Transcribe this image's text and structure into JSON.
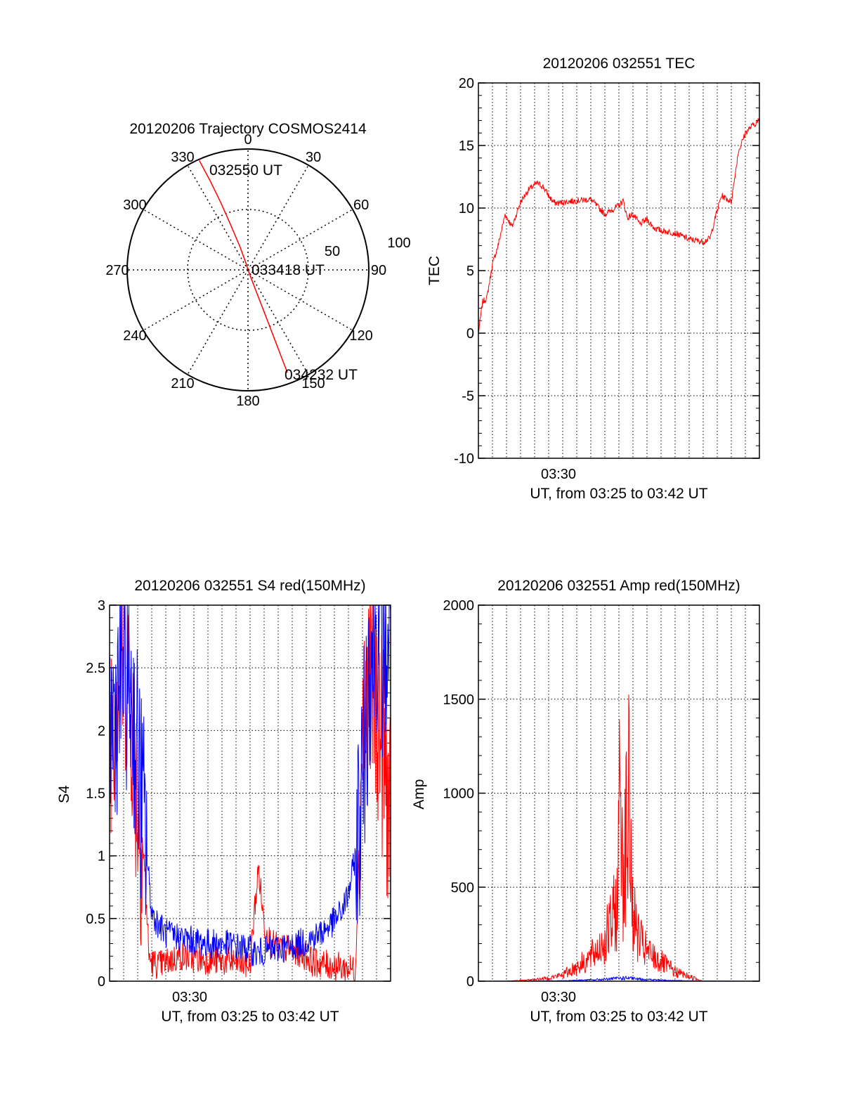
{
  "colors": {
    "red": "#ff0000",
    "blue": "#0000ff",
    "axis": "#000000",
    "grid": "#000000"
  },
  "chart_data": [
    {
      "type": "scatter",
      "kind": "polar-trajectory",
      "title": "20120206 Trajectory COSMOS2414",
      "azimuth_labels": [
        "0",
        "30",
        "60",
        "90",
        "120",
        "150",
        "180",
        "210",
        "240",
        "270",
        "300",
        "330"
      ],
      "radial_labels": [
        "50",
        "100"
      ],
      "series": [
        {
          "color": "#ff0000",
          "points": [
            {
              "az": 336,
              "elev": 99
            },
            {
              "az": 337,
              "elev": 80
            },
            {
              "az": 338,
              "elev": 60
            },
            {
              "az": 339,
              "elev": 40
            },
            {
              "az": 341,
              "elev": 20
            },
            {
              "az": 343,
              "elev": 6
            },
            {
              "az": 159,
              "elev": 2
            },
            {
              "az": 159,
              "elev": 20
            },
            {
              "az": 159,
              "elev": 40
            },
            {
              "az": 159,
              "elev": 60
            },
            {
              "az": 159,
              "elev": 80
            },
            {
              "az": 159,
              "elev": 91
            }
          ]
        }
      ],
      "annotations": [
        "032550 UT",
        "033418 UT",
        "034232 UT"
      ]
    },
    {
      "type": "line",
      "title": "20120206 032551 TEC",
      "xlabel": "UT, from 03:25 to 03:42 UT",
      "ylabel": "TEC",
      "xtick_labels": [
        "03:30"
      ],
      "ylim": [
        -10,
        20
      ],
      "yticks": [
        "-10",
        "-5",
        "0",
        "5",
        "10",
        "15",
        "20"
      ],
      "series": [
        {
          "color": "#ff0000",
          "x": [
            0,
            0.3,
            0.6,
            1.0,
            1.4,
            1.9,
            2.4,
            3.0,
            3.6,
            4.2,
            4.6,
            5.0,
            5.3,
            5.5,
            5.7,
            6.2,
            7.0,
            8.0,
            9.0,
            10.0,
            10.3,
            10.6,
            11.0,
            11.5,
            12.0,
            12.5,
            13.0,
            14.0,
            15.0,
            16.0,
            16.5,
            16.8,
            17.3,
            18.0,
            18.5,
            19.0,
            19.5,
            20.0
          ],
          "y": [
            0,
            2.5,
            2.8,
            5.5,
            7.0,
            9.5,
            8.5,
            10.5,
            11.5,
            12.0,
            11.7,
            11.0,
            10.5,
            10.4,
            10.4,
            10.5,
            10.6,
            10.7,
            9.5,
            10.2,
            10.6,
            9.2,
            9.5,
            8.7,
            9.1,
            8.4,
            8.2,
            8.0,
            7.5,
            7.3,
            7.6,
            9.0,
            11.0,
            10.5,
            14.5,
            16.0,
            16.6,
            17.0
          ]
        }
      ]
    },
    {
      "type": "line",
      "title": "20120206 032551 S4 red(150MHz)",
      "xlabel": "UT, from 03:25 to 03:42 UT",
      "ylabel": "S4",
      "xtick_labels": [
        "03:30"
      ],
      "ylim": [
        0,
        3
      ],
      "yticks": [
        "0",
        "0.5",
        "1",
        "1.5",
        "2",
        "2.5",
        "3"
      ],
      "series": [
        {
          "color": "#ff0000",
          "x": [
            0,
            0.5,
            1.0,
            1.5,
            2.0,
            2.5,
            2.8,
            3.0,
            3.5,
            4.0,
            5.0,
            6.0,
            7.0,
            8.0,
            9.0,
            10.0,
            10.3,
            10.6,
            11.0,
            11.5,
            12.0,
            13.0,
            14.0,
            14.5,
            15.0,
            16.0,
            17.0,
            17.5,
            18.0,
            18.5,
            19.0,
            19.5,
            20.0
          ],
          "y": [
            2.0,
            2.4,
            2.6,
            2.3,
            1.4,
            0.9,
            0.2,
            0.15,
            0.13,
            0.15,
            0.2,
            0.18,
            0.17,
            0.16,
            0.15,
            0.13,
            0.55,
            0.9,
            0.45,
            0.3,
            0.27,
            0.25,
            0.2,
            0.15,
            0.14,
            0.12,
            0.1,
            0.1,
            2.0,
            2.4,
            2.2,
            1.8,
            1.2
          ]
        },
        {
          "color": "#0000ff",
          "x": [
            0,
            0.5,
            1.0,
            1.5,
            2.0,
            2.5,
            3.0,
            3.5,
            4.0,
            5.0,
            6.0,
            7.0,
            8.0,
            9.0,
            10.0,
            10.5,
            11.0,
            12.0,
            13.0,
            14.0,
            15.0,
            16.0,
            16.5,
            17.0,
            17.5,
            18.0,
            18.5,
            19.0,
            19.5,
            20.0
          ],
          "y": [
            2.0,
            2.2,
            2.5,
            2.3,
            1.8,
            1.2,
            0.55,
            0.45,
            0.38,
            0.35,
            0.32,
            0.3,
            0.3,
            0.28,
            0.25,
            0.22,
            0.24,
            0.26,
            0.28,
            0.32,
            0.38,
            0.48,
            0.55,
            0.7,
            1.0,
            1.6,
            2.6,
            2.9,
            2.6,
            2.8
          ]
        }
      ]
    },
    {
      "type": "line",
      "title": "20120206 032551 Amp red(150MHz)",
      "xlabel": "UT, from 03:25 to 03:42 UT",
      "ylabel": "Amp",
      "xtick_labels": [
        "03:30"
      ],
      "ylim": [
        0,
        2000
      ],
      "yticks": [
        "0",
        "500",
        "1000",
        "1500",
        "2000"
      ],
      "series": [
        {
          "color": "#ff0000",
          "x": [
            0,
            2,
            3,
            4,
            5,
            6,
            7,
            8,
            8.5,
            9,
            9.5,
            9.9,
            10.1,
            10.3,
            10.5,
            10.7,
            11,
            11.5,
            12,
            13,
            14,
            15,
            16,
            17,
            18,
            19,
            20
          ],
          "y": [
            0,
            0,
            5,
            10,
            20,
            40,
            90,
            150,
            200,
            260,
            360,
            500,
            1400,
            700,
            900,
            1120,
            400,
            250,
            180,
            120,
            60,
            30,
            0,
            0,
            0,
            0,
            0
          ]
        },
        {
          "color": "#0000ff",
          "x": [
            0,
            4,
            6,
            8,
            9,
            10,
            10.5,
            11,
            12,
            14,
            16,
            20
          ],
          "y": [
            0,
            1,
            3,
            8,
            12,
            18,
            20,
            16,
            10,
            4,
            1,
            0
          ]
        }
      ]
    }
  ]
}
